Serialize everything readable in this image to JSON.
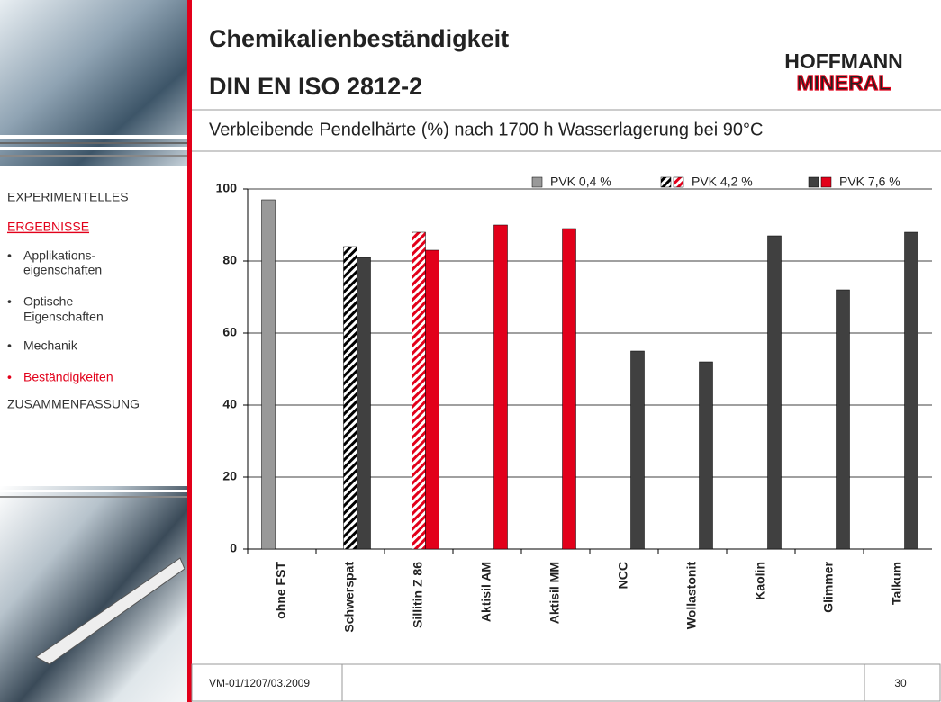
{
  "header": {
    "title": [
      "Chemikalienbeständigkeit",
      "DIN EN ISO 2812-2"
    ],
    "logo": [
      "HOFFMANN",
      "MINERAL"
    ]
  },
  "subtitle": "Verbleibende Pendelhärte (%) nach 1700 h Wasserlagerung bei 90°C",
  "nav": {
    "sections": [
      "EXPERIMENTELLES",
      "ERGEBNISSE",
      "ZUSAMMENFASSUNG"
    ],
    "items": [
      [
        "Applikations-",
        "eigenschaften"
      ],
      [
        "Optische",
        "Eigenschaften"
      ],
      [
        "Mechanik"
      ],
      [
        "Beständigkeiten"
      ]
    ]
  },
  "chart_data": {
    "type": "bar",
    "categories": [
      "ohne FST",
      "Schwerspat",
      "Sillitin Z 86",
      "Aktisil AM",
      "Aktisil MM",
      "NCC",
      "Wollastonit",
      "Kaolin",
      "Glimmer",
      "Talkum"
    ],
    "series": [
      {
        "name": "PVK 0,4 %",
        "color": "#999999",
        "hatch": false,
        "values": [
          97,
          null,
          null,
          null,
          null,
          null,
          null,
          null,
          null,
          null
        ]
      },
      {
        "name": "PVK 4,2 %",
        "color": [
          "#000000",
          "#e2001a"
        ],
        "hatch": true,
        "values": [
          null,
          84,
          88,
          null,
          null,
          null,
          null,
          null,
          null,
          null
        ]
      },
      {
        "name": "PVK 7,6 %",
        "color": [
          "#404040",
          "#e2001a"
        ],
        "hatch": false,
        "values": [
          null,
          81,
          83,
          90,
          89,
          55,
          52,
          87,
          72,
          88
        ]
      }
    ],
    "bar_colors": [
      [
        0,
        0,
        0,
        0,
        0,
        0,
        0,
        0,
        0,
        0
      ],
      [
        0,
        0,
        1,
        0,
        0,
        0,
        0,
        0,
        0,
        0
      ],
      [
        0,
        0,
        1,
        1,
        1,
        0,
        0,
        0,
        0,
        0
      ]
    ],
    "ylim": [
      0,
      100
    ],
    "yticks": [
      0,
      20,
      40,
      60,
      80,
      100
    ],
    "grid": true
  },
  "footer": {
    "code": "VM-01/1207/03.2009",
    "page": "30"
  }
}
